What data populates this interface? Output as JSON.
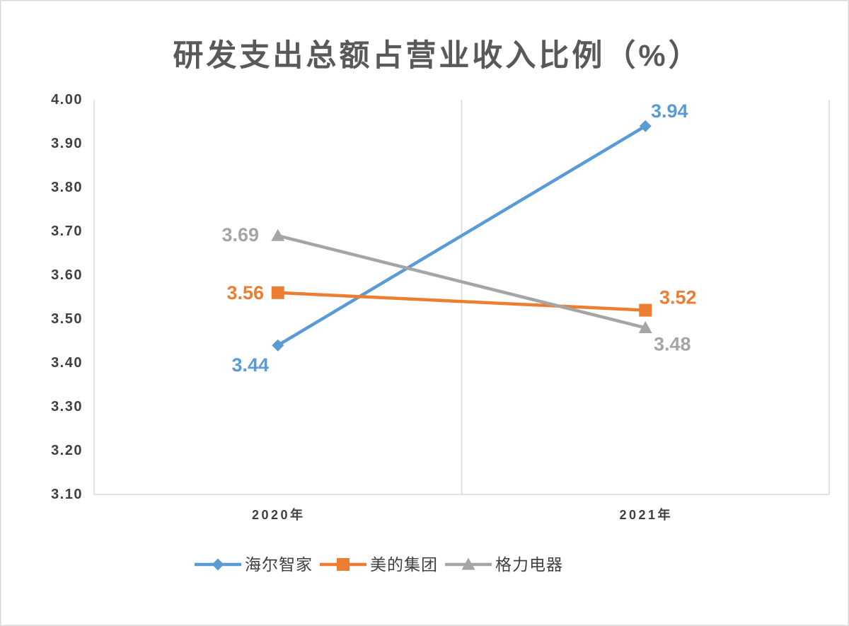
{
  "chart_data": {
    "type": "line",
    "title": "研发支出总额占营业收入比例（%）",
    "categories": [
      "2020年",
      "2021年"
    ],
    "series": [
      {
        "name": "海尔智家",
        "values": [
          3.44,
          3.94
        ],
        "color": "#5B9BD5",
        "marker": "diamond"
      },
      {
        "name": "美的集团",
        "values": [
          3.56,
          3.52
        ],
        "color": "#ED7D31",
        "marker": "square"
      },
      {
        "name": "格力电器",
        "values": [
          3.69,
          3.48
        ],
        "color": "#A5A5A5",
        "marker": "triangle"
      }
    ],
    "ylim": [
      3.1,
      4.0
    ],
    "ytick_labels": [
      "4.00",
      "3.90",
      "3.80",
      "3.70",
      "3.60",
      "3.50",
      "3.40",
      "3.30",
      "3.20",
      "3.10"
    ],
    "data_labels": true,
    "legend": "bottom",
    "grid": {
      "horizontal": false,
      "vertical": true
    }
  }
}
